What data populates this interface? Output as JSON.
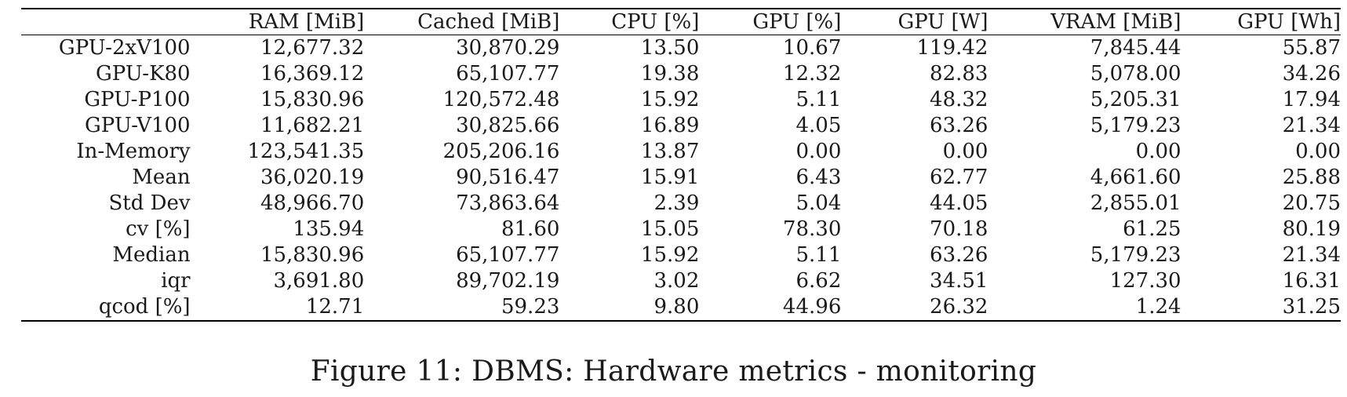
{
  "table": {
    "headers": [
      "",
      "RAM [MiB]",
      "Cached [MiB]",
      "CPU [%]",
      "GPU [%]",
      "GPU [W]",
      "VRAM [MiB]",
      "GPU [Wh]"
    ],
    "rows": [
      [
        "GPU-2xV100",
        "12,677.32",
        "30,870.29",
        "13.50",
        "10.67",
        "119.42",
        "7,845.44",
        "55.87"
      ],
      [
        "GPU-K80",
        "16,369.12",
        "65,107.77",
        "19.38",
        "12.32",
        "82.83",
        "5,078.00",
        "34.26"
      ],
      [
        "GPU-P100",
        "15,830.96",
        "120,572.48",
        "15.92",
        "5.11",
        "48.32",
        "5,205.31",
        "17.94"
      ],
      [
        "GPU-V100",
        "11,682.21",
        "30,825.66",
        "16.89",
        "4.05",
        "63.26",
        "5,179.23",
        "21.34"
      ],
      [
        "In-Memory",
        "123,541.35",
        "205,206.16",
        "13.87",
        "0.00",
        "0.00",
        "0.00",
        "0.00"
      ],
      [
        "Mean",
        "36,020.19",
        "90,516.47",
        "15.91",
        "6.43",
        "62.77",
        "4,661.60",
        "25.88"
      ],
      [
        "Std Dev",
        "48,966.70",
        "73,863.64",
        "2.39",
        "5.04",
        "44.05",
        "2,855.01",
        "20.75"
      ],
      [
        "cv [%]",
        "135.94",
        "81.60",
        "15.05",
        "78.30",
        "70.18",
        "61.25",
        "80.19"
      ],
      [
        "Median",
        "15,830.96",
        "65,107.77",
        "15.92",
        "5.11",
        "63.26",
        "5,179.23",
        "21.34"
      ],
      [
        "iqr",
        "3,691.80",
        "89,702.19",
        "3.02",
        "6.62",
        "34.51",
        "127.30",
        "16.31"
      ],
      [
        "qcod [%]",
        "12.71",
        "59.23",
        "9.80",
        "44.96",
        "26.32",
        "1.24",
        "31.25"
      ]
    ]
  },
  "caption": "Figure 11: DBMS: Hardware metrics - monitoring"
}
